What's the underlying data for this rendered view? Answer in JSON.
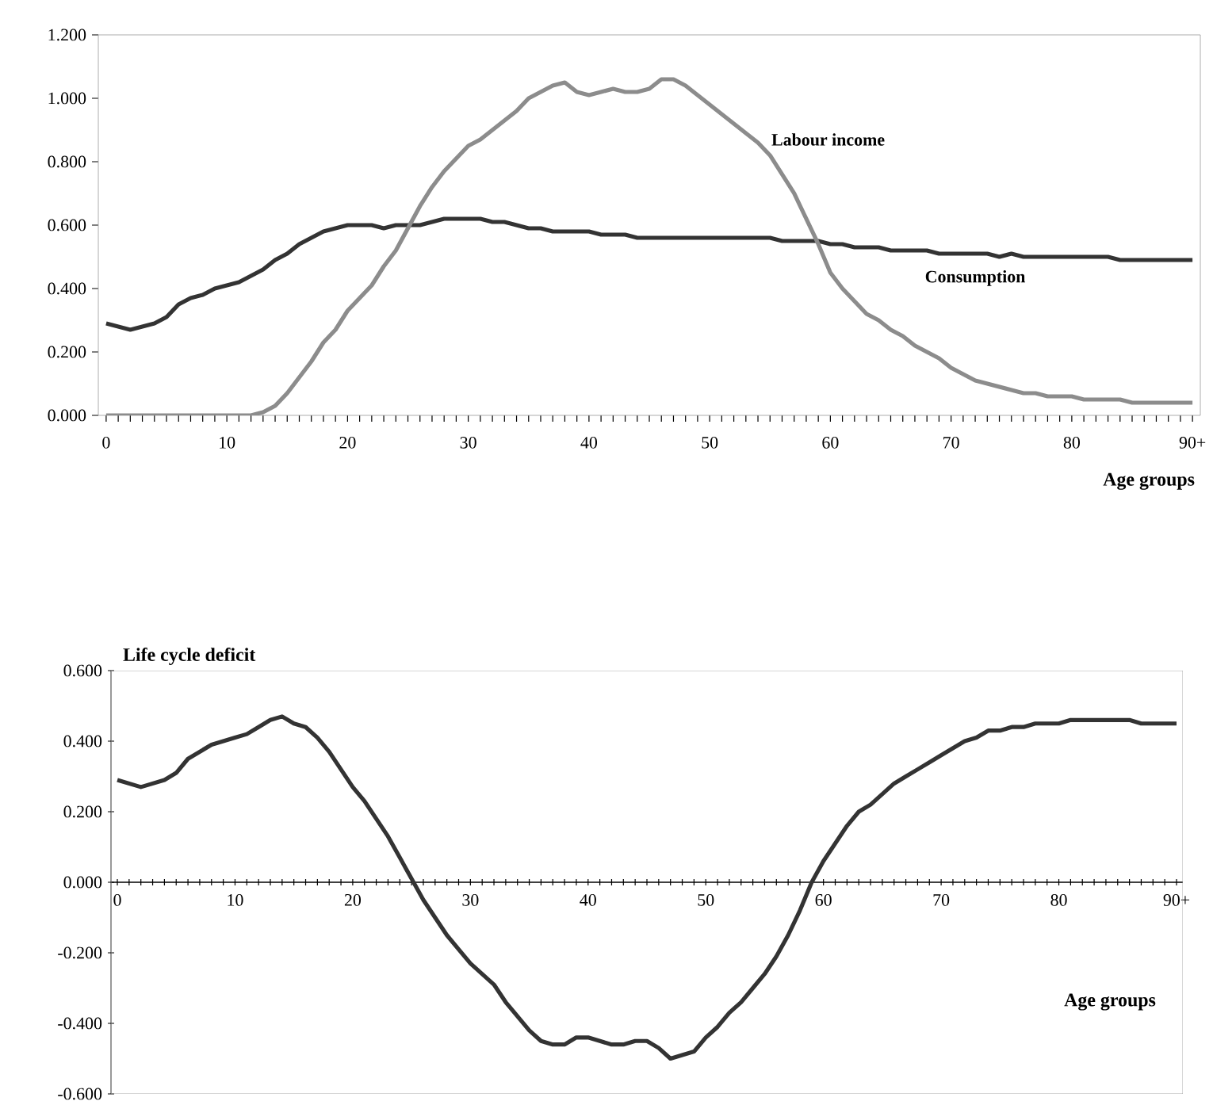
{
  "chart_data": [
    {
      "type": "line",
      "x": [
        0,
        1,
        2,
        3,
        4,
        5,
        6,
        7,
        8,
        9,
        10,
        11,
        12,
        13,
        14,
        15,
        16,
        17,
        18,
        19,
        20,
        21,
        22,
        23,
        24,
        25,
        26,
        27,
        28,
        29,
        30,
        31,
        32,
        33,
        34,
        35,
        36,
        37,
        38,
        39,
        40,
        41,
        42,
        43,
        44,
        45,
        46,
        47,
        48,
        49,
        50,
        51,
        52,
        53,
        54,
        55,
        56,
        57,
        58,
        59,
        60,
        61,
        62,
        63,
        64,
        65,
        66,
        67,
        68,
        69,
        70,
        71,
        72,
        73,
        74,
        75,
        76,
        77,
        78,
        79,
        80,
        81,
        82,
        83,
        84,
        85,
        86,
        87,
        88,
        89,
        90
      ],
      "xlabel": "Age groups",
      "xlim": [
        -0.65,
        90.65
      ],
      "ylim": [
        0,
        1.2
      ],
      "xticks": [
        0,
        10,
        20,
        30,
        40,
        50,
        60,
        70,
        80,
        {
          "value": 90,
          "label": "90+"
        }
      ],
      "yticks": [
        {
          "value": 0,
          "label": "0.000"
        },
        {
          "value": 0.2,
          "label": "0.200"
        },
        {
          "value": 0.4,
          "label": "0.400"
        },
        {
          "value": 0.6,
          "label": "0.600"
        },
        {
          "value": 0.8,
          "label": "0.800"
        },
        {
          "value": 1.0,
          "label": "1.000"
        },
        {
          "value": 1.2,
          "label": "1.200"
        }
      ],
      "series": [
        {
          "name": "Consumption",
          "color": "#333333",
          "values": [
            0.29,
            0.28,
            0.27,
            0.28,
            0.29,
            0.31,
            0.35,
            0.37,
            0.38,
            0.4,
            0.41,
            0.42,
            0.44,
            0.46,
            0.49,
            0.51,
            0.54,
            0.56,
            0.58,
            0.59,
            0.6,
            0.6,
            0.6,
            0.59,
            0.6,
            0.6,
            0.6,
            0.61,
            0.62,
            0.62,
            0.62,
            0.62,
            0.61,
            0.61,
            0.6,
            0.59,
            0.59,
            0.58,
            0.58,
            0.58,
            0.58,
            0.57,
            0.57,
            0.57,
            0.56,
            0.56,
            0.56,
            0.56,
            0.56,
            0.56,
            0.56,
            0.56,
            0.56,
            0.56,
            0.56,
            0.56,
            0.55,
            0.55,
            0.55,
            0.55,
            0.54,
            0.54,
            0.53,
            0.53,
            0.53,
            0.52,
            0.52,
            0.52,
            0.52,
            0.51,
            0.51,
            0.51,
            0.51,
            0.51,
            0.5,
            0.51,
            0.5,
            0.5,
            0.5,
            0.5,
            0.5,
            0.5,
            0.5,
            0.5,
            0.49,
            0.49,
            0.49,
            0.49,
            0.49,
            0.49,
            0.49
          ]
        },
        {
          "name": "Labour income",
          "color": "#8c8c8c",
          "values": [
            0,
            0,
            0,
            0,
            0,
            0,
            0,
            0,
            0,
            0,
            0,
            0,
            0,
            0.01,
            0.03,
            0.07,
            0.12,
            0.17,
            0.23,
            0.27,
            0.33,
            0.37,
            0.41,
            0.47,
            0.52,
            0.59,
            0.66,
            0.72,
            0.77,
            0.81,
            0.85,
            0.87,
            0.9,
            0.93,
            0.96,
            1.0,
            1.02,
            1.04,
            1.05,
            1.02,
            1.01,
            1.02,
            1.03,
            1.02,
            1.02,
            1.03,
            1.06,
            1.06,
            1.04,
            1.01,
            0.98,
            0.95,
            0.92,
            0.89,
            0.86,
            0.82,
            0.76,
            0.7,
            0.62,
            0.54,
            0.45,
            0.4,
            0.36,
            0.32,
            0.3,
            0.27,
            0.25,
            0.22,
            0.2,
            0.18,
            0.15,
            0.13,
            0.11,
            0.1,
            0.09,
            0.08,
            0.07,
            0.07,
            0.06,
            0.06,
            0.06,
            0.05,
            0.05,
            0.05,
            0.05,
            0.04,
            0.04,
            0.04,
            0.04,
            0.04,
            0.04
          ]
        }
      ]
    },
    {
      "type": "line",
      "x": [
        0,
        1,
        2,
        3,
        4,
        5,
        6,
        7,
        8,
        9,
        10,
        11,
        12,
        13,
        14,
        15,
        16,
        17,
        18,
        19,
        20,
        21,
        22,
        23,
        24,
        25,
        26,
        27,
        28,
        29,
        30,
        31,
        32,
        33,
        34,
        35,
        36,
        37,
        38,
        39,
        40,
        41,
        42,
        43,
        44,
        45,
        46,
        47,
        48,
        49,
        50,
        51,
        52,
        53,
        54,
        55,
        56,
        57,
        58,
        59,
        60,
        61,
        62,
        63,
        64,
        65,
        66,
        67,
        68,
        69,
        70,
        71,
        72,
        73,
        74,
        75,
        76,
        77,
        78,
        79,
        80,
        81,
        82,
        83,
        84,
        85,
        86,
        87,
        88,
        89,
        90
      ],
      "xlabel": "Age groups",
      "ylabel": "Life cycle deficit",
      "xlim": [
        -0.54,
        90.54
      ],
      "ylim": [
        -0.6,
        0.6
      ],
      "xticks": [
        0,
        10,
        20,
        30,
        40,
        50,
        60,
        70,
        80,
        {
          "value": 90,
          "label": "90+"
        }
      ],
      "yticks": [
        {
          "value": -0.6,
          "label": "-0.600"
        },
        {
          "value": -0.4,
          "label": "-0.400"
        },
        {
          "value": -0.2,
          "label": "-0.200"
        },
        {
          "value": 0,
          "label": "0.000"
        },
        {
          "value": 0.2,
          "label": "0.200"
        },
        {
          "value": 0.4,
          "label": "0.400"
        },
        {
          "value": 0.6,
          "label": "0.600"
        }
      ],
      "series": [
        {
          "color": "#333333",
          "values": [
            0.29,
            0.28,
            0.27,
            0.28,
            0.29,
            0.31,
            0.35,
            0.37,
            0.39,
            0.4,
            0.41,
            0.42,
            0.44,
            0.46,
            0.47,
            0.45,
            0.44,
            0.41,
            0.37,
            0.32,
            0.27,
            0.23,
            0.18,
            0.13,
            0.07,
            0.01,
            -0.05,
            -0.1,
            -0.15,
            -0.19,
            -0.23,
            -0.26,
            -0.29,
            -0.34,
            -0.38,
            -0.42,
            -0.45,
            -0.46,
            -0.46,
            -0.44,
            -0.44,
            -0.45,
            -0.46,
            -0.46,
            -0.45,
            -0.45,
            -0.47,
            -0.5,
            -0.49,
            -0.48,
            -0.44,
            -0.41,
            -0.37,
            -0.34,
            -0.3,
            -0.26,
            -0.21,
            -0.15,
            -0.08,
            0.0,
            0.06,
            0.11,
            0.16,
            0.2,
            0.22,
            0.25,
            0.28,
            0.3,
            0.32,
            0.34,
            0.36,
            0.38,
            0.4,
            0.41,
            0.43,
            0.43,
            0.44,
            0.44,
            0.45,
            0.45,
            0.45,
            0.46,
            0.46,
            0.46,
            0.46,
            0.46,
            0.46,
            0.45,
            0.45,
            0.45,
            0.45
          ]
        }
      ]
    }
  ]
}
